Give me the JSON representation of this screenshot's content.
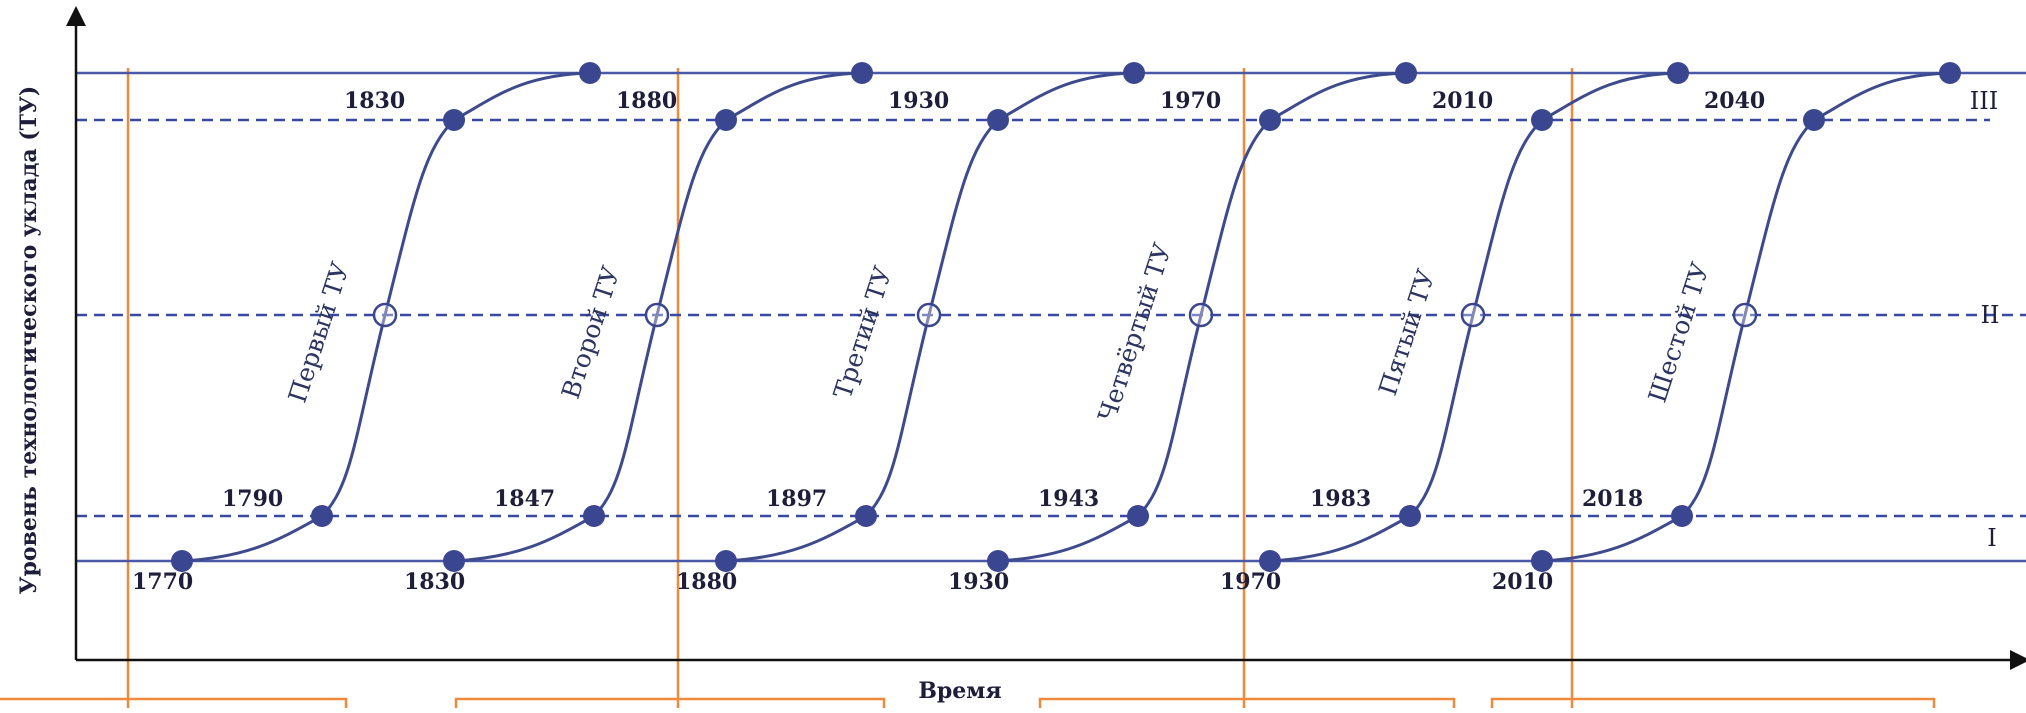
{
  "y_axis_label": "Уровень технологического уклада (ТУ)",
  "x_axis_label": "Время",
  "levels": [
    {
      "label": "III"
    },
    {
      "label": "II"
    },
    {
      "label": "I"
    }
  ],
  "waves": [
    {
      "name": "Первый ТУ",
      "start": "1770",
      "rise_start": "1790",
      "rise_end": "1830",
      "end": "1830"
    },
    {
      "name": "Второй ТУ",
      "start": "1830",
      "rise_start": "1847",
      "rise_end": "1880",
      "end": "1880"
    },
    {
      "name": "Третий ТУ",
      "start": "1880",
      "rise_start": "1897",
      "rise_end": "1930",
      "end": "1930"
    },
    {
      "name": "Четвёртый ТУ",
      "start": "1930",
      "rise_start": "1943",
      "rise_end": "1970",
      "end": "1970"
    },
    {
      "name": "Пятый ТУ",
      "start": "1970",
      "rise_start": "1983",
      "rise_end": "2010",
      "end": "2010"
    },
    {
      "name": "Шестой ТУ",
      "start": "2010",
      "rise_start": "2018",
      "rise_end": "2040",
      "end": "2040"
    }
  ],
  "colors": {
    "curve": "#3d4a8c",
    "dot": "#3b4690",
    "dashed": "#3948a0",
    "solid": "#4a58a8",
    "divider": "#ef8a3c",
    "axis": "#111111"
  }
}
